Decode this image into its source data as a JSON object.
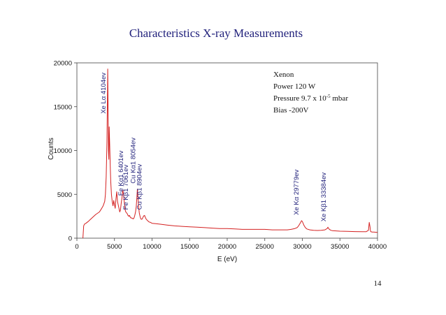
{
  "page_number": "14",
  "chart_data": {
    "type": "line",
    "title": "Characteristics X-ray Measurements",
    "xlabel": "E (eV)",
    "ylabel": "Counts",
    "xlim": [
      0,
      40000
    ],
    "ylim": [
      0,
      20000
    ],
    "xticks": [
      0,
      5000,
      10000,
      15000,
      20000,
      25000,
      30000,
      35000,
      40000
    ],
    "yticks": [
      0,
      5000,
      10000,
      15000,
      20000
    ],
    "grid": false,
    "line_color": "#d42020",
    "info_box": {
      "line1": "Xenon",
      "line2": "Power 120 W",
      "line3_prefix": "Pressure 9.7 x 10",
      "line3_exp": "-5",
      "line3_suffix": " mbar",
      "line4": "Bias -200V"
    },
    "annotations": [
      {
        "text": "Xe Lα  4104ev",
        "x": 4104
      },
      {
        "text": "Fe Kα1 6401ev",
        "x": 6401
      },
      {
        "text": "Fe Kβ1 7061ev",
        "x": 7061
      },
      {
        "text": "Cu Kα1 8054ev",
        "x": 8054
      },
      {
        "text": "Cu Kβ1 8904ev",
        "x": 8904
      },
      {
        "text": "Xe Kα  29779ev",
        "x": 29779
      },
      {
        "text": "Xe Kβ1 33384ev",
        "x": 33384
      }
    ],
    "x": [
      800,
      900,
      1000,
      1200,
      1500,
      2000,
      2500,
      3000,
      3300,
      3500,
      3700,
      3800,
      3900,
      4000,
      4100,
      4150,
      4200,
      4250,
      4300,
      4350,
      4450,
      4500,
      4600,
      4700,
      4800,
      4900,
      5000,
      5100,
      5200,
      5300,
      5400,
      5500,
      5600,
      5700,
      5800,
      5900,
      6000,
      6100,
      6200,
      6300,
      6400,
      6500,
      6600,
      6700,
      6800,
      6900,
      7000,
      7100,
      7200,
      7300,
      7400,
      7500,
      7600,
      7700,
      7800,
      7900,
      8000,
      8050,
      8100,
      8200,
      8300,
      8400,
      8500,
      8600,
      8700,
      8800,
      8900,
      9000,
      9100,
      9200,
      9400,
      9600,
      9800,
      10000,
      10500,
      11000,
      12000,
      13000,
      14000,
      15000,
      16000,
      17000,
      18000,
      19000,
      20000,
      21000,
      22000,
      23000,
      24000,
      25000,
      26000,
      27000,
      28000,
      28500,
      29000,
      29300,
      29500,
      29700,
      29800,
      29900,
      30000,
      30100,
      30200,
      30400,
      30600,
      31000,
      31500,
      32000,
      32500,
      33000,
      33200,
      33300,
      33400,
      33500,
      33600,
      33800,
      34000,
      35000,
      36000,
      37000,
      38000,
      38500,
      38800,
      38900,
      39000,
      39050,
      39100,
      39200,
      39300,
      39500,
      40000
    ],
    "y": [
      0,
      1400,
      1600,
      1700,
      1900,
      2300,
      2700,
      3000,
      3400,
      3700,
      4200,
      5000,
      7000,
      11000,
      19300,
      15000,
      10000,
      9000,
      12700,
      11000,
      8000,
      6500,
      5000,
      4200,
      3700,
      4300,
      3800,
      3400,
      4500,
      5300,
      4200,
      3800,
      3400,
      3000,
      3200,
      4000,
      4600,
      5500,
      5000,
      4200,
      3300,
      3000,
      2900,
      2800,
      2600,
      2500,
      2600,
      2400,
      2300,
      2300,
      2250,
      2200,
      2300,
      2600,
      3000,
      3600,
      4900,
      5600,
      5000,
      3800,
      2900,
      2500,
      2200,
      2150,
      2200,
      2400,
      2550,
      2600,
      2400,
      2200,
      2000,
      1850,
      1800,
      1700,
      1650,
      1600,
      1500,
      1400,
      1350,
      1300,
      1250,
      1200,
      1150,
      1100,
      1100,
      1050,
      1000,
      1000,
      1000,
      1000,
      950,
      950,
      950,
      1000,
      1100,
      1200,
      1400,
      1700,
      1850,
      2000,
      1900,
      1700,
      1500,
      1200,
      1050,
      950,
      900,
      880,
      900,
      950,
      1050,
      1100,
      1250,
      1100,
      1000,
      900,
      850,
      800,
      780,
      750,
      730,
      740,
      900,
      1800,
      1300,
      900,
      750,
      720,
      700,
      700,
      650
    ]
  }
}
